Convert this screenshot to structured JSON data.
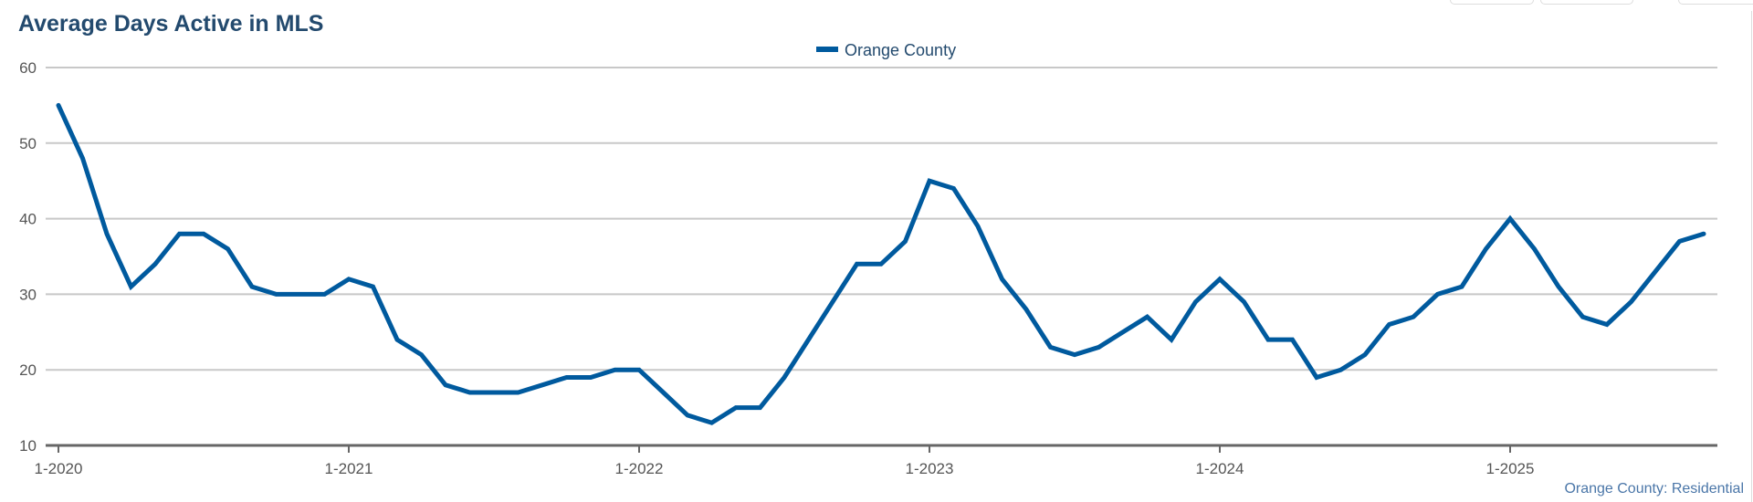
{
  "chart_data": {
    "type": "line",
    "title": "Average Days Active in MLS",
    "xlabel": "",
    "ylabel": "",
    "ylim": [
      10,
      60
    ],
    "yticks": [
      10,
      20,
      30,
      40,
      50,
      60
    ],
    "grid": true,
    "legend_placement": "top-center",
    "start": "1-2020",
    "x_tick_labels": [
      "1-2020",
      "1-2021",
      "1-2022",
      "1-2023",
      "1-2024",
      "1-2025"
    ],
    "series": [
      {
        "name": "Orange County",
        "color": "#005a9e",
        "values": [
          55,
          48,
          38,
          31,
          34,
          38,
          38,
          36,
          31,
          30,
          30,
          30,
          32,
          31,
          24,
          22,
          18,
          17,
          17,
          17,
          18,
          19,
          19,
          20,
          20,
          17,
          14,
          13,
          15,
          15,
          19,
          24,
          29,
          34,
          34,
          37,
          45,
          44,
          39,
          32,
          28,
          23,
          22,
          23,
          25,
          27,
          24,
          29,
          32,
          29,
          24,
          24,
          19,
          20,
          22,
          26,
          27,
          30,
          31,
          36,
          40,
          36,
          31,
          27,
          26,
          29,
          33,
          37,
          38
        ]
      }
    ],
    "credit": "Orange County: Residential"
  }
}
